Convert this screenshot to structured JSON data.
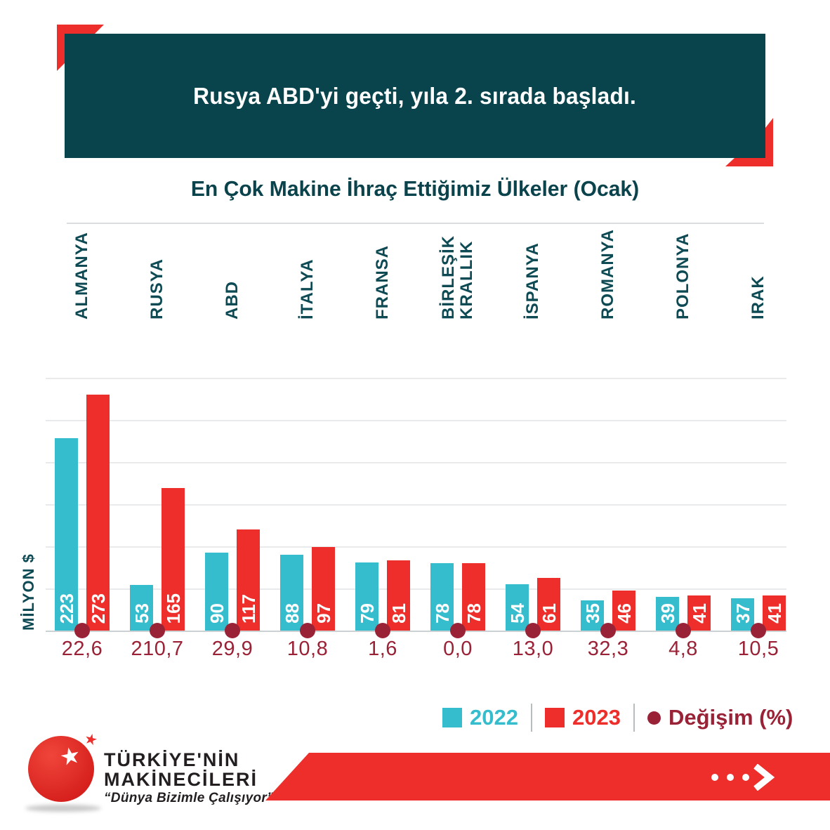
{
  "header": {
    "title": "Rusya ABD'yi geçti, yıla 2. sırada başladı."
  },
  "subtitle": "En Çok Makine İhraç Ettiğimiz Ülkeler (Ocak)",
  "chart_data": {
    "type": "bar",
    "title": "En Çok Makine İhraç Ettiğimiz Ülkeler (Ocak)",
    "ylabel": "MİLYON $",
    "unit": "Milyon $",
    "categories": [
      "ALMANYA",
      "RUSYA",
      "ABD",
      "İTALYA",
      "FRANSA",
      "BİRLEŞİK KRALLIK",
      "İSPANYA",
      "ROMANYA",
      "POLONYA",
      "IRAK"
    ],
    "series": [
      {
        "name": "2022",
        "color": "#35bccd",
        "values": [
          223,
          53,
          90,
          88,
          79,
          78,
          54,
          35,
          39,
          37
        ]
      },
      {
        "name": "2023",
        "color": "#ed2e2a",
        "values": [
          273,
          165,
          117,
          97,
          81,
          78,
          61,
          46,
          41,
          41
        ]
      }
    ],
    "change": {
      "name": "Değişim (%)",
      "color": "#9a2236",
      "values": [
        "22,6",
        "210,7",
        "29,9",
        "10,8",
        "1,6",
        "0,0",
        "13,0",
        "32,3",
        "4,8",
        "10,5"
      ]
    },
    "ylim": [
      0,
      292
    ],
    "grid": true,
    "gridline_count": 7,
    "legend_position": "bottom"
  },
  "legend": {
    "items": [
      {
        "label": "2022",
        "color": "#35bccd",
        "marker": "square"
      },
      {
        "label": "2023",
        "color": "#ed2e2a",
        "marker": "square"
      },
      {
        "label": "Değişim (%)",
        "color": "#9a2236",
        "marker": "circle"
      }
    ]
  },
  "footer": {
    "brand_line1": "TÜRKİYE'NİN",
    "brand_line2": "MAKİNECİLERİ",
    "tagline": "“Dünya Bizimle Çalışıyor”",
    "arrow_icon": "dots-chevron-right-icon",
    "logo_icon": "red-globe-star-icon"
  },
  "colors": {
    "header_bg": "#09434c",
    "accent_red": "#ed2e2a",
    "series_2022": "#35bccd",
    "series_2023": "#ed2e2a",
    "change_maroon": "#9a2236",
    "teal_text": "#0d4a54"
  }
}
